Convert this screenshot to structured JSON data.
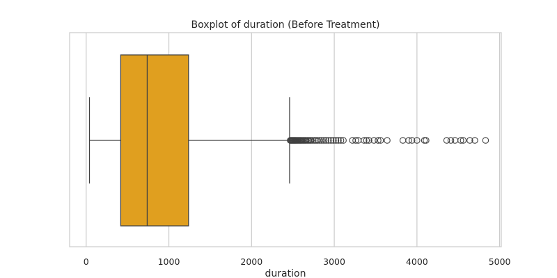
{
  "chart_data": {
    "type": "boxplot",
    "title": "Boxplot of duration (Before Treatment)",
    "xlabel": "duration",
    "ylabel": "",
    "xlim": [
      -200,
      5020
    ],
    "xticks": [
      0,
      1000,
      2000,
      3000,
      4000,
      5000
    ],
    "xtick_labels": [
      "0",
      "1000",
      "2000",
      "3000",
      "4000",
      "5000"
    ],
    "grid": "vertical",
    "box": {
      "whisker_low": 40,
      "q1": 418,
      "median": 738,
      "q3": 1238,
      "whisker_high": 2460,
      "fill_color": "#e09f1f",
      "line_color": "#404040"
    },
    "outliers": [
      2468,
      2476,
      2484,
      2492,
      2500,
      2508,
      2516,
      2524,
      2532,
      2540,
      2550,
      2560,
      2570,
      2580,
      2590,
      2600,
      2612,
      2624,
      2636,
      2648,
      2660,
      2675,
      2690,
      2705,
      2720,
      2740,
      2760,
      2780,
      2800,
      2825,
      2850,
      2875,
      2900,
      2930,
      2960,
      2990,
      3020,
      3050,
      3080,
      3110,
      3220,
      3260,
      3290,
      3360,
      3390,
      3420,
      3480,
      3530,
      3560,
      3640,
      3830,
      3900,
      3940,
      4000,
      4090,
      4110,
      4360,
      4410,
      4460,
      4530,
      4560,
      4640,
      4700,
      4830
    ],
    "colors": {
      "grid": "#cccccc",
      "frame": "#cccccc",
      "outlier_edge": "#404040"
    }
  }
}
